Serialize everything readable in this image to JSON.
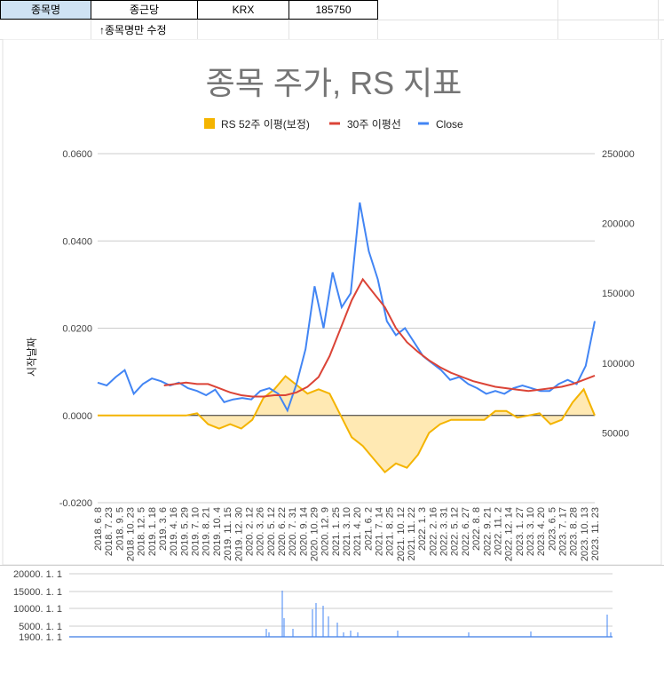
{
  "sheet": {
    "cells": [
      "종목명",
      "종근당",
      "KRX",
      "185750"
    ],
    "note": "↑종목명만 수정"
  },
  "chart": {
    "title": "종목 주가, RS 지표",
    "legend": [
      "RS 52주 이평(보정)",
      "30주 이평선",
      "Close"
    ],
    "left_axis_label": "시작날짜",
    "left_ticks": [
      "0.0600",
      "0.0400",
      "0.0200",
      "0.0000",
      "-0.0200"
    ],
    "right_ticks": [
      "250000",
      "200000",
      "150000",
      "100000",
      "50000"
    ],
    "x_ticks": [
      "2018. 6. 8",
      "2018. 7. 23",
      "2018. 9. 5",
      "2018. 10. 23",
      "2018. 12. 5",
      "2019. 1. 18",
      "2019. 3. 6",
      "2019. 4. 16",
      "2019. 5. 29",
      "2019. 7. 10",
      "2019. 8. 21",
      "2019. 10. 4",
      "2019. 11. 15",
      "2019. 12. 30",
      "2020. 2. 12",
      "2020. 3. 26",
      "2020. 5. 12",
      "2020. 6. 22",
      "2020. 7. 31",
      "2020. 9. 14",
      "2020. 10. 29",
      "2020. 12. 9",
      "2021. 1. 25",
      "2021. 3. 10",
      "2021. 4. 20",
      "2021. 6. 2",
      "2021. 7. 14",
      "2021. 8. 25",
      "2021. 10. 12",
      "2021. 11. 22",
      "2022. 1. 3",
      "2022. 2. 16",
      "2022. 3. 31",
      "2022. 5. 12",
      "2022. 6. 27",
      "2022. 8. 8",
      "2022. 9. 21",
      "2022. 11. 2",
      "2022. 12. 14",
      "2023. 1. 27",
      "2023. 3. 10",
      "2023. 4. 20",
      "2023. 6. 5",
      "2023. 7. 17",
      "2023. 8. 28",
      "2023. 10. 13",
      "2023. 11. 23"
    ],
    "colors": {
      "rs": "#f4b400",
      "ma": "#db4437",
      "close": "#4285f4",
      "rs_fill": "#ffe3a0"
    }
  },
  "volume": {
    "ticks": [
      "20000. 1. 1",
      "15000. 1. 1",
      "10000. 1. 1",
      "5000. 1. 1",
      "1900. 1. 1"
    ]
  },
  "chart_data": {
    "type": "line",
    "x_range": [
      "2018. 6. 8",
      "2023. 12. 1"
    ],
    "ylim_left": [
      -0.02,
      0.06
    ],
    "ylim_right": [
      0,
      250000
    ],
    "series": [
      {
        "name": "Close",
        "axis": "right",
        "values": [
          86000,
          84000,
          90000,
          95000,
          78000,
          85000,
          89000,
          87000,
          84000,
          86000,
          82000,
          80000,
          77000,
          81000,
          72000,
          74000,
          75000,
          74000,
          80000,
          82000,
          78000,
          66000,
          85000,
          110000,
          155000,
          125000,
          165000,
          140000,
          150000,
          215000,
          180000,
          160000,
          130000,
          120000,
          125000,
          115000,
          105000,
          100000,
          95000,
          88000,
          90000,
          85000,
          82000,
          78000,
          80000,
          78000,
          82000,
          84000,
          82000,
          80000,
          80000,
          85000,
          88000,
          85000,
          98000,
          130000
        ]
      },
      {
        "name": "30주 이평선",
        "axis": "right",
        "values": [
          null,
          null,
          null,
          null,
          null,
          null,
          84000,
          85000,
          86000,
          85000,
          85000,
          82000,
          79000,
          77000,
          76000,
          76000,
          77000,
          77000,
          79000,
          83000,
          90000,
          105000,
          125000,
          145000,
          160000,
          150000,
          140000,
          125000,
          115000,
          108000,
          102000,
          97000,
          93000,
          90000,
          87000,
          85000,
          83000,
          82000,
          81000,
          80000,
          81000,
          82000,
          83000,
          85000,
          88000,
          91000
        ]
      },
      {
        "name": "RS 52주 이평(보정)",
        "axis": "left",
        "values": [
          0,
          0,
          0,
          0,
          0,
          0,
          0,
          0,
          0,
          0.0005,
          -0.002,
          -0.003,
          -0.002,
          -0.003,
          -0.001,
          0.004,
          0.006,
          0.009,
          0.007,
          0.005,
          0.006,
          0.005,
          0,
          -0.005,
          -0.007,
          -0.01,
          -0.013,
          -0.011,
          -0.012,
          -0.009,
          -0.004,
          -0.002,
          -0.001,
          -0.001,
          -0.001,
          -0.001,
          0.001,
          0.001,
          -0.0005,
          0,
          0.0005,
          -0.002,
          -0.001,
          0.003,
          0.006,
          0
        ]
      }
    ],
    "volume_ylim": [
      "1900. 1. 1",
      "20000. 1. 1"
    ]
  }
}
